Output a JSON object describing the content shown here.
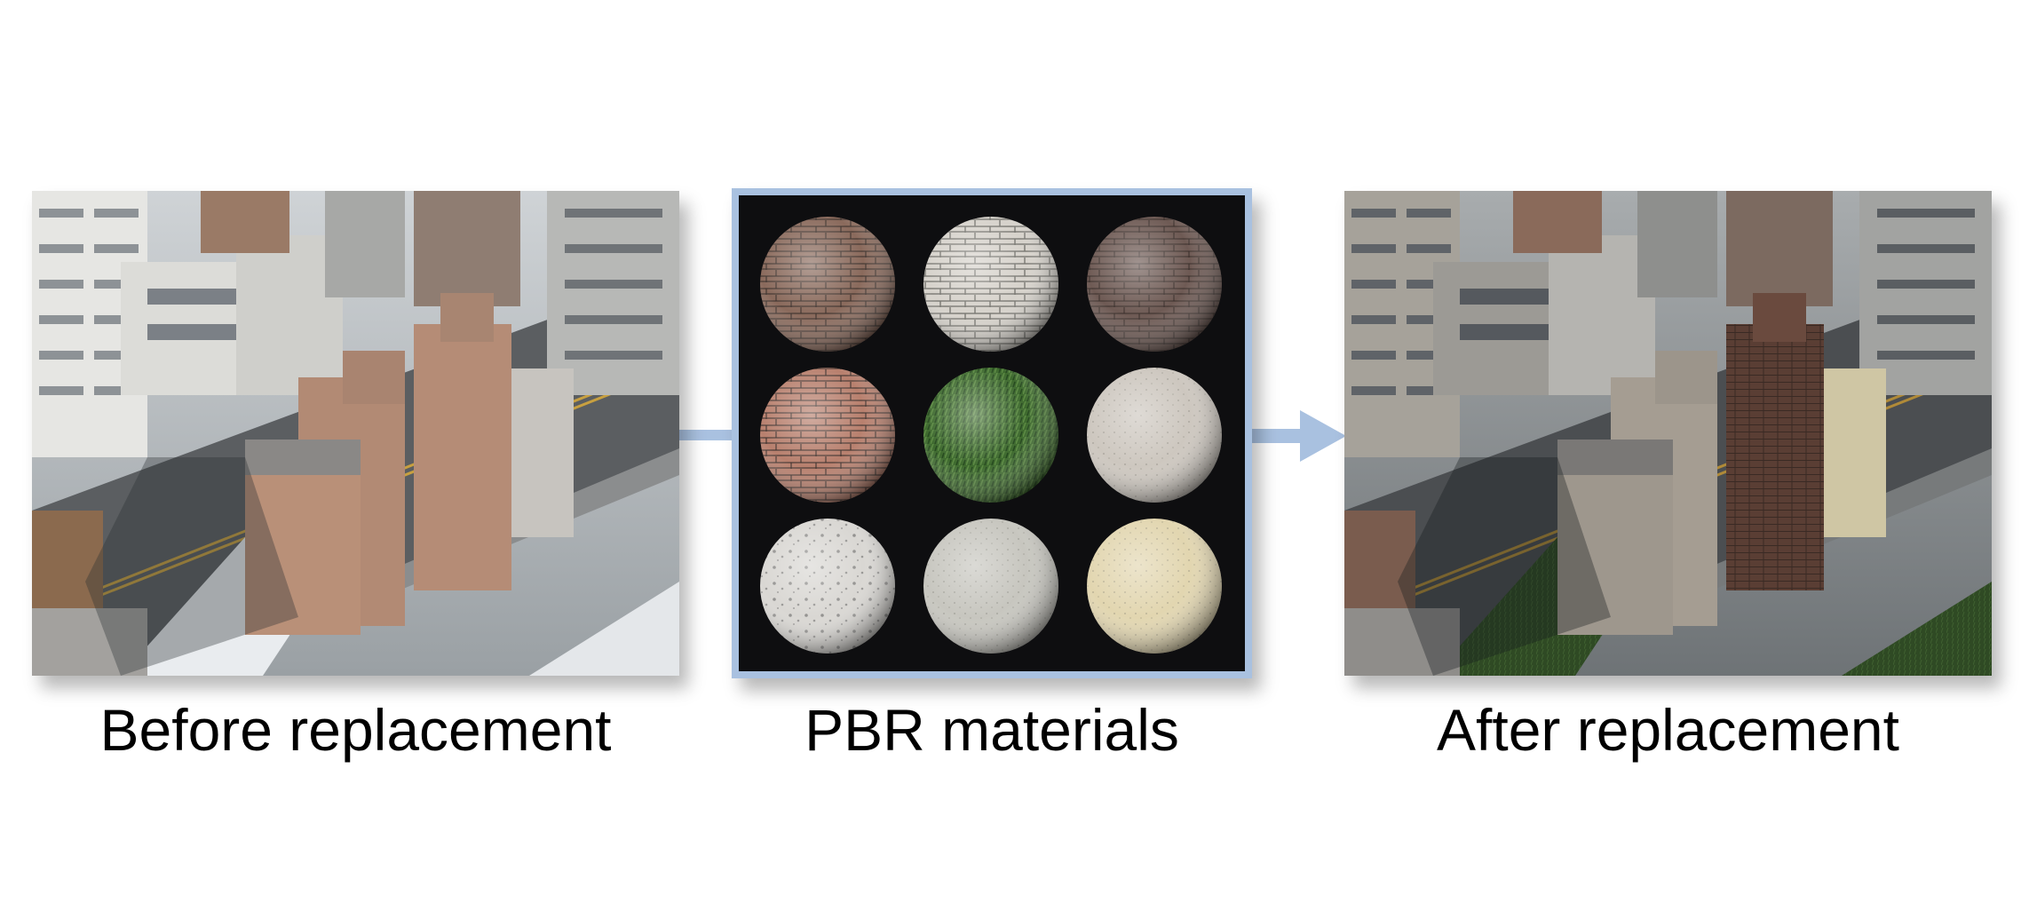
{
  "panels": {
    "before": {
      "caption": "Before replacement"
    },
    "materials": {
      "caption": "PBR materials",
      "spheres": [
        {
          "material": "aged-red-brick",
          "color": "#8a6a5c"
        },
        {
          "material": "white-brick",
          "color": "#d6d2cb"
        },
        {
          "material": "dark-stone-brick",
          "color": "#6e5a54"
        },
        {
          "material": "salmon-brick",
          "color": "#b8806e"
        },
        {
          "material": "grass",
          "color": "#3e6a2e"
        },
        {
          "material": "concrete-smooth",
          "color": "#cdc7bf"
        },
        {
          "material": "concrete-porous",
          "color": "#d9d7d3"
        },
        {
          "material": "plaster-rough",
          "color": "#c7c6bf"
        },
        {
          "material": "sandstone",
          "color": "#e2d6b0"
        }
      ]
    },
    "after": {
      "caption": "After replacement"
    }
  },
  "colors": {
    "arrow": "#a9c1e0",
    "frame": "#a9c1e0"
  }
}
